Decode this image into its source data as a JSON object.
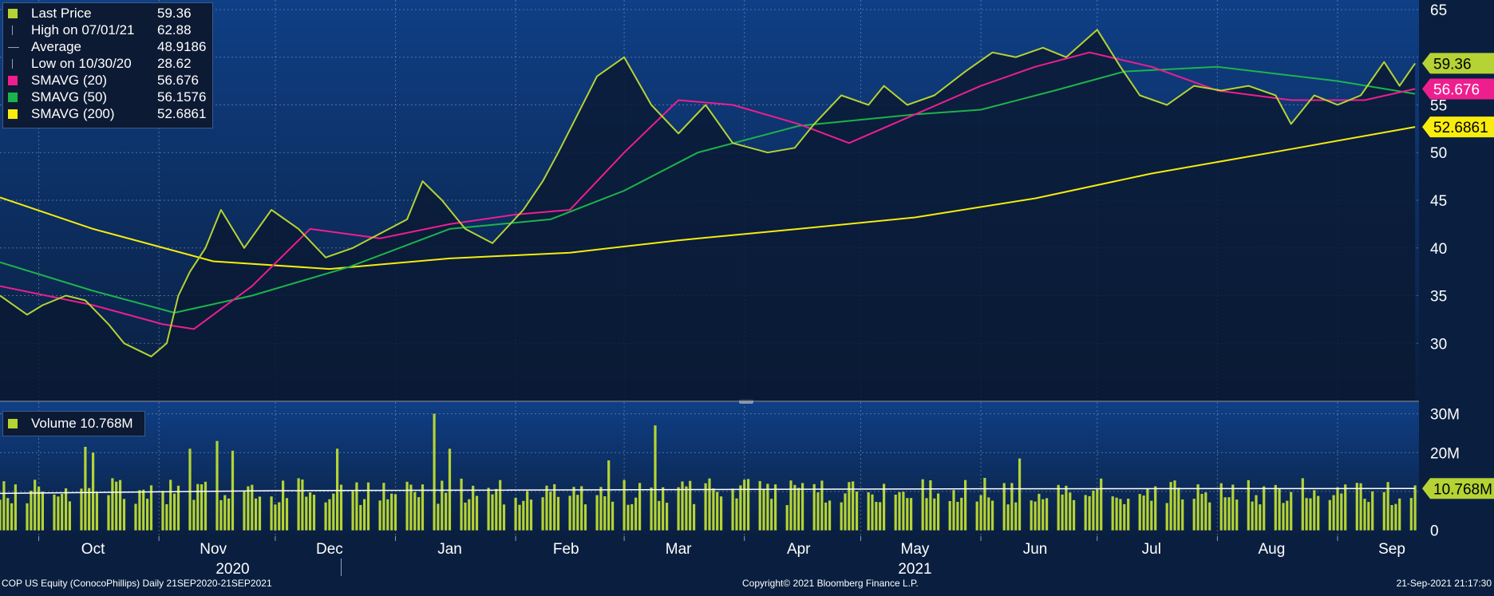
{
  "chart_data": [
    {
      "type": "line",
      "title": "",
      "ylim": [
        24,
        66
      ],
      "y_ticks": [
        30,
        35,
        40,
        45,
        50,
        55,
        60,
        65
      ],
      "y_ticks_labeled": [
        30,
        35,
        40,
        45,
        50,
        55,
        65
      ],
      "x_domain": [
        "2020-09-21",
        "2021-09-22"
      ],
      "grid": true,
      "legend": "top-left",
      "legend_rows": [
        {
          "label": "Last Price",
          "value": "59.36",
          "color": "#b5d334",
          "marker": "square"
        },
        {
          "label": "High on 07/01/21",
          "value": "62.88",
          "color": "#9aa0a8",
          "marker": "tick"
        },
        {
          "label": "Average",
          "value": "48.9186",
          "color": "#9aa0a8",
          "marker": "arrow"
        },
        {
          "label": "Low on 10/30/20",
          "value": "28.62",
          "color": "#9aa0a8",
          "marker": "tick"
        },
        {
          "label": "SMAVG (20)",
          "value": "56.676",
          "color": "#ee1e8f",
          "marker": "square"
        },
        {
          "label": "SMAVG (50)",
          "value": "56.1576",
          "color": "#1db34c",
          "marker": "square"
        },
        {
          "label": "SMAVG (200)",
          "value": "52.6861",
          "color": "#f7ec0e",
          "marker": "square"
        }
      ],
      "series": [
        {
          "name": "Last Price",
          "color": "#b5d334",
          "fill": true,
          "points": [
            [
              "2020-09-21",
              35.0
            ],
            [
              "2020-09-28",
              33.0
            ],
            [
              "2020-10-02",
              34.0
            ],
            [
              "2020-10-08",
              35.0
            ],
            [
              "2020-10-13",
              34.5
            ],
            [
              "2020-10-19",
              32.0
            ],
            [
              "2020-10-23",
              30.0
            ],
            [
              "2020-10-30",
              28.62
            ],
            [
              "2020-11-03",
              30.0
            ],
            [
              "2020-11-06",
              35.0
            ],
            [
              "2020-11-09",
              37.5
            ],
            [
              "2020-11-13",
              40.0
            ],
            [
              "2020-11-17",
              44.0
            ],
            [
              "2020-11-23",
              40.0
            ],
            [
              "2020-11-30",
              44.0
            ],
            [
              "2020-12-07",
              42.0
            ],
            [
              "2020-12-14",
              39.0
            ],
            [
              "2020-12-21",
              40.0
            ],
            [
              "2021-01-04",
              43.0
            ],
            [
              "2021-01-08",
              47.0
            ],
            [
              "2021-01-13",
              45.0
            ],
            [
              "2021-01-19",
              42.0
            ],
            [
              "2021-01-26",
              40.5
            ],
            [
              "2021-02-03",
              44.0
            ],
            [
              "2021-02-08",
              47.0
            ],
            [
              "2021-02-12",
              50.0
            ],
            [
              "2021-02-17",
              54.0
            ],
            [
              "2021-02-22",
              58.0
            ],
            [
              "2021-03-01",
              60.0
            ],
            [
              "2021-03-08",
              55.0
            ],
            [
              "2021-03-15",
              52.0
            ],
            [
              "2021-03-22",
              55.0
            ],
            [
              "2021-03-29",
              51.0
            ],
            [
              "2021-04-07",
              50.0
            ],
            [
              "2021-04-14",
              50.5
            ],
            [
              "2021-04-19",
              53.0
            ],
            [
              "2021-04-26",
              56.0
            ],
            [
              "2021-05-03",
              55.0
            ],
            [
              "2021-05-07",
              57.0
            ],
            [
              "2021-05-13",
              55.0
            ],
            [
              "2021-05-20",
              56.0
            ],
            [
              "2021-05-28",
              58.5
            ],
            [
              "2021-06-04",
              60.5
            ],
            [
              "2021-06-10",
              60.0
            ],
            [
              "2021-06-17",
              61.0
            ],
            [
              "2021-06-23",
              60.0
            ],
            [
              "2021-07-01",
              62.88
            ],
            [
              "2021-07-07",
              59.0
            ],
            [
              "2021-07-12",
              56.0
            ],
            [
              "2021-07-19",
              55.0
            ],
            [
              "2021-07-26",
              57.0
            ],
            [
              "2021-08-02",
              56.5
            ],
            [
              "2021-08-09",
              57.0
            ],
            [
              "2021-08-16",
              56.0
            ],
            [
              "2021-08-20",
              53.0
            ],
            [
              "2021-08-26",
              56.0
            ],
            [
              "2021-09-01",
              55.0
            ],
            [
              "2021-09-07",
              56.0
            ],
            [
              "2021-09-13",
              59.5
            ],
            [
              "2021-09-17",
              57.0
            ],
            [
              "2021-09-21",
              59.36
            ]
          ]
        },
        {
          "name": "SMAVG (20)",
          "color": "#ee1e8f",
          "points": [
            [
              "2020-09-21",
              36.0
            ],
            [
              "2020-10-15",
              34.0
            ],
            [
              "2020-11-02",
              32.0
            ],
            [
              "2020-11-10",
              31.5
            ],
            [
              "2020-11-25",
              36.0
            ],
            [
              "2020-12-10",
              42.0
            ],
            [
              "2020-12-28",
              41.0
            ],
            [
              "2021-01-15",
              42.5
            ],
            [
              "2021-02-01",
              43.5
            ],
            [
              "2021-02-15",
              44.0
            ],
            [
              "2021-03-01",
              50.0
            ],
            [
              "2021-03-15",
              55.5
            ],
            [
              "2021-03-29",
              55.0
            ],
            [
              "2021-04-15",
              53.0
            ],
            [
              "2021-04-28",
              51.0
            ],
            [
              "2021-05-15",
              54.0
            ],
            [
              "2021-06-01",
              57.0
            ],
            [
              "2021-06-15",
              59.0
            ],
            [
              "2021-06-29",
              60.5
            ],
            [
              "2021-07-15",
              59.0
            ],
            [
              "2021-08-01",
              56.5
            ],
            [
              "2021-08-20",
              55.5
            ],
            [
              "2021-09-08",
              55.5
            ],
            [
              "2021-09-21",
              56.676
            ]
          ]
        },
        {
          "name": "SMAVG (50)",
          "color": "#1db34c",
          "points": [
            [
              "2020-09-21",
              38.5
            ],
            [
              "2020-10-15",
              35.5
            ],
            [
              "2020-11-05",
              33.2
            ],
            [
              "2020-11-25",
              35.0
            ],
            [
              "2020-12-20",
              38.0
            ],
            [
              "2021-01-15",
              42.0
            ],
            [
              "2021-02-10",
              43.0
            ],
            [
              "2021-03-01",
              46.0
            ],
            [
              "2021-03-20",
              50.0
            ],
            [
              "2021-04-15",
              52.8
            ],
            [
              "2021-05-15",
              54.0
            ],
            [
              "2021-06-01",
              54.5
            ],
            [
              "2021-06-20",
              56.5
            ],
            [
              "2021-07-08",
              58.5
            ],
            [
              "2021-08-01",
              59.0
            ],
            [
              "2021-09-01",
              57.5
            ],
            [
              "2021-09-21",
              56.1576
            ]
          ]
        },
        {
          "name": "SMAVG (200)",
          "color": "#f7ec0e",
          "points": [
            [
              "2020-09-21",
              45.3
            ],
            [
              "2020-10-15",
              42.0
            ],
            [
              "2020-11-15",
              38.6
            ],
            [
              "2020-12-15",
              37.8
            ],
            [
              "2021-01-15",
              38.9
            ],
            [
              "2021-02-15",
              39.5
            ],
            [
              "2021-03-15",
              40.8
            ],
            [
              "2021-04-15",
              42.0
            ],
            [
              "2021-05-15",
              43.2
            ],
            [
              "2021-06-15",
              45.2
            ],
            [
              "2021-07-15",
              47.8
            ],
            [
              "2021-08-15",
              50.0
            ],
            [
              "2021-09-21",
              52.6861
            ]
          ]
        }
      ],
      "right_labels": [
        {
          "text": "59.36",
          "value": 59.36,
          "bg": "#b5d334",
          "fg": "#000000"
        },
        {
          "text": "56.676",
          "value": 56.676,
          "bg": "#ee1e8f",
          "fg": "#ffffff"
        },
        {
          "text": "52.6861",
          "value": 52.6861,
          "bg": "#f7ec0e",
          "fg": "#000000"
        }
      ]
    },
    {
      "type": "bar",
      "title": "",
      "ylim": [
        -1.5,
        33
      ],
      "y_ticks": [
        0,
        10,
        20,
        30
      ],
      "y_tick_labels": [
        "0",
        "10M",
        "20M",
        "30M"
      ],
      "grid": true,
      "legend": "top-left",
      "legend_rows": [
        {
          "label": "Volume 10.768M",
          "color": "#b5d334"
        }
      ],
      "bar_color": "#b5d334",
      "spikes": [
        {
          "date": "2020-10-13",
          "value": 21.5
        },
        {
          "date": "2020-10-15",
          "value": 20.0
        },
        {
          "date": "2020-11-09",
          "value": 21.0
        },
        {
          "date": "2020-11-16",
          "value": 23.0
        },
        {
          "date": "2020-11-20",
          "value": 20.5
        },
        {
          "date": "2020-12-17",
          "value": 21.0
        },
        {
          "date": "2021-01-11",
          "value": 30.0
        },
        {
          "date": "2021-01-15",
          "value": 21.0
        },
        {
          "date": "2021-02-25",
          "value": 18.0
        },
        {
          "date": "2021-03-09",
          "value": 27.0
        },
        {
          "date": "2021-06-11",
          "value": 18.5
        }
      ],
      "avg_line_color": "#ffffff",
      "avg_points": [
        [
          "2020-09-21",
          9.5
        ],
        [
          "2020-12-01",
          10.2
        ],
        [
          "2021-06-01",
          10.7
        ],
        [
          "2021-09-21",
          10.768
        ]
      ],
      "right_labels": [
        {
          "text": "10.768M",
          "value": 10.768,
          "bg": "#b5d334",
          "fg": "#000000"
        }
      ]
    }
  ],
  "x_axis": {
    "months": [
      {
        "label": "Oct",
        "date": "2020-10-15"
      },
      {
        "label": "Nov",
        "date": "2020-11-15"
      },
      {
        "label": "Dec",
        "date": "2020-12-15"
      },
      {
        "label": "Jan",
        "date": "2021-01-15"
      },
      {
        "label": "Feb",
        "date": "2021-02-14"
      },
      {
        "label": "Mar",
        "date": "2021-03-15"
      },
      {
        "label": "Apr",
        "date": "2021-04-15"
      },
      {
        "label": "May",
        "date": "2021-05-15"
      },
      {
        "label": "Jun",
        "date": "2021-06-15"
      },
      {
        "label": "Jul",
        "date": "2021-07-15"
      },
      {
        "label": "Aug",
        "date": "2021-08-15"
      },
      {
        "label": "Sep",
        "date": "2021-09-15"
      }
    ],
    "month_starts": [
      "2020-10-01",
      "2020-11-01",
      "2020-12-01",
      "2021-01-01",
      "2021-02-01",
      "2021-03-01",
      "2021-04-01",
      "2021-05-01",
      "2021-06-01",
      "2021-07-01",
      "2021-08-01",
      "2021-09-01"
    ],
    "years": [
      {
        "label": "2020",
        "date": "2020-11-20"
      },
      {
        "label": "2021",
        "date": "2021-05-15"
      }
    ],
    "year_divider": "2021-01-01"
  },
  "footer": {
    "left": "COP US Equity (ConocoPhillips)  Daily 21SEP2020-21SEP2021",
    "center": "Copyright© 2021 Bloomberg Finance L.P.",
    "right": "21-Sep-2021 21:17:30"
  }
}
